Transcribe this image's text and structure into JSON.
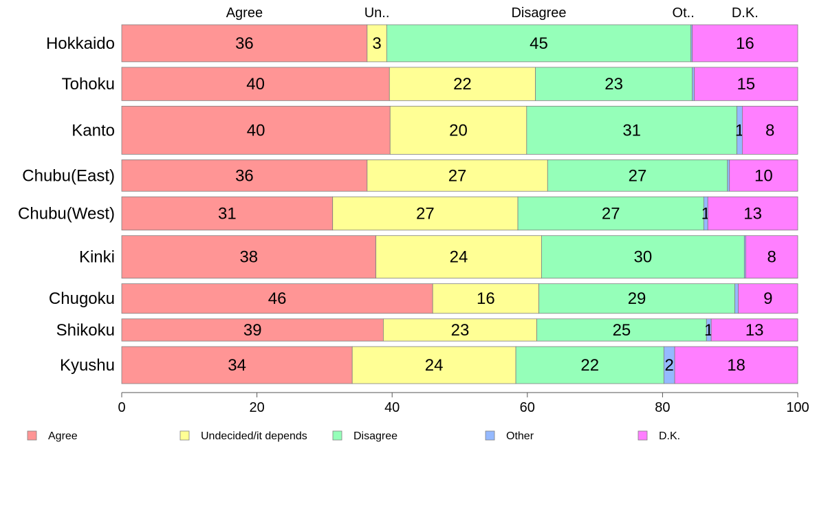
{
  "chart_data": {
    "type": "bar",
    "orientation": "horizontal",
    "stacked": true,
    "categories": [
      "Hokkaido",
      "Tohoku",
      "Kanto",
      "Chubu(East)",
      "Chubu(West)",
      "Kinki",
      "Chugoku",
      "Shikoku",
      "Kyushu"
    ],
    "row_weights": [
      1.0,
      0.9,
      1.3,
      0.85,
      0.9,
      1.15,
      0.8,
      0.6,
      1.0
    ],
    "top_labels": [
      "Agree",
      "Un..",
      "Disagree",
      "Ot..",
      "D.K."
    ],
    "series": [
      {
        "name": "Agree",
        "color": "#ff9595",
        "values": [
          36.3,
          39.6,
          39.7,
          36.3,
          31.2,
          37.6,
          46.0,
          38.7,
          34.1
        ],
        "labels": [
          "36",
          "40",
          "40",
          "36",
          "31",
          "38",
          "46",
          "39",
          "34"
        ]
      },
      {
        "name": "Undecided/it depends",
        "color": "#ffff95",
        "values": [
          2.9,
          21.6,
          20.2,
          26.7,
          27.4,
          24.5,
          15.7,
          22.7,
          24.2
        ],
        "labels": [
          "3",
          "22",
          "20",
          "27",
          "27",
          "24",
          "16",
          "23",
          "24"
        ]
      },
      {
        "name": "Disagree",
        "color": "#95ffb9",
        "values": [
          45.0,
          23.2,
          31.1,
          26.6,
          27.5,
          30.0,
          29.0,
          25.1,
          21.9
        ],
        "labels": [
          "45",
          "23",
          "31",
          "27",
          "27",
          "30",
          "29",
          "25",
          "22"
        ]
      },
      {
        "name": "Other",
        "color": "#95b9ff",
        "values": [
          0.2,
          0.3,
          0.8,
          0.3,
          0.6,
          0.2,
          0.5,
          0.7,
          1.6
        ],
        "labels": [
          "",
          "",
          "1",
          "",
          "1",
          "",
          "",
          "1",
          "2"
        ]
      },
      {
        "name": "D.K.",
        "color": "#ff7fff",
        "values": [
          15.6,
          15.3,
          8.2,
          10.1,
          13.3,
          7.7,
          8.8,
          12.8,
          18.2
        ],
        "labels": [
          "16",
          "15",
          "8",
          "10",
          "13",
          "8",
          "9",
          "13",
          "18"
        ]
      }
    ],
    "xlim": [
      0,
      100
    ],
    "xticks": [
      0,
      20,
      40,
      60,
      80,
      100
    ],
    "xtick_labels": [
      "0",
      "20",
      "40",
      "60",
      "80",
      "100"
    ],
    "legend_position": "bottom",
    "grid": false
  }
}
